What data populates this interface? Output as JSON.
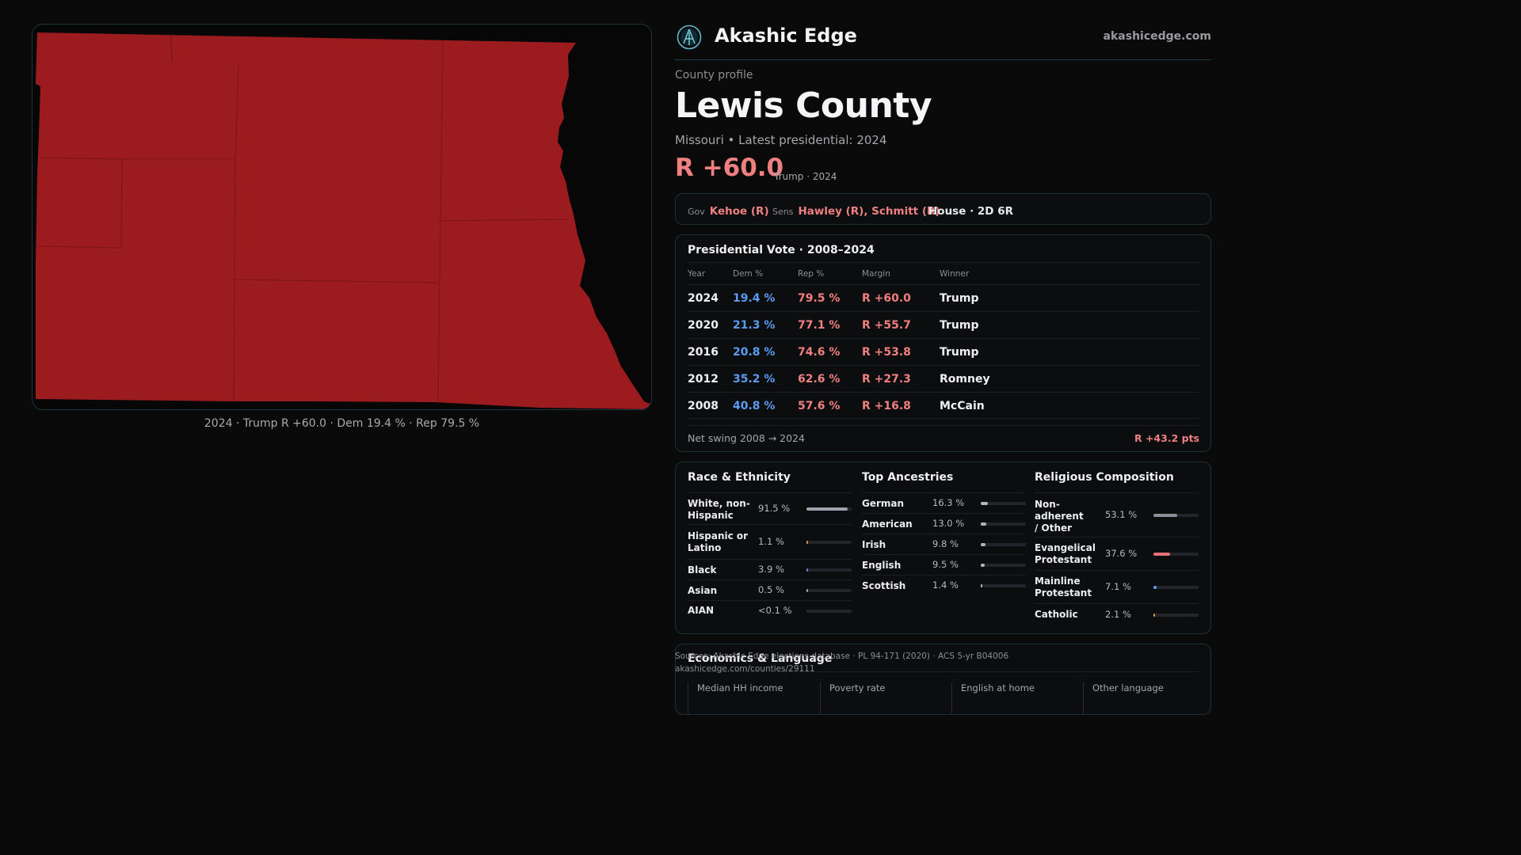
{
  "colors": {
    "rep": "#f08080",
    "dem": "#5b9cf0",
    "map_fill": "#9b1b1f",
    "accent": "#1e3c44"
  },
  "brand": {
    "name": "Akashic Edge",
    "url": "akashicedge.com",
    "logo_icon": "akashic-emblem-icon"
  },
  "map": {
    "caption": "2024 · Trump R +60.0 · Dem 19.4 % · Rep 79.5 %",
    "winner_party": "R"
  },
  "profile": {
    "eyebrow": "County profile",
    "county": "Lewis County",
    "subline": "Missouri • Latest presidential: 2024",
    "margin": "R +60.0",
    "winner_year": "Trump · 2024"
  },
  "officials": {
    "gov_label": "Gov",
    "gov": "Kehoe (R)",
    "sens_label": "Sens",
    "sens": "Hawley (R), Schmitt (R)",
    "house": "House · 2D 6R"
  },
  "results": {
    "title": "Presidential Vote · 2008–2024",
    "headers": {
      "year": "Year",
      "dem": "Dem %",
      "rep": "Rep %",
      "margin": "Margin",
      "winner": "Winner"
    },
    "rows": [
      {
        "year": "2024",
        "dem": "19.4 %",
        "rep": "79.5 %",
        "margin": "R +60.0",
        "winner": "Trump"
      },
      {
        "year": "2020",
        "dem": "21.3 %",
        "rep": "77.1 %",
        "margin": "R +55.7",
        "winner": "Trump"
      },
      {
        "year": "2016",
        "dem": "20.8 %",
        "rep": "74.6 %",
        "margin": "R +53.8",
        "winner": "Trump"
      },
      {
        "year": "2012",
        "dem": "35.2 %",
        "rep": "62.6 %",
        "margin": "R +27.3",
        "winner": "Romney"
      },
      {
        "year": "2008",
        "dem": "40.8 %",
        "rep": "57.6 %",
        "margin": "R +16.8",
        "winner": "McCain"
      }
    ],
    "swing_label": "Net swing 2008 → 2024",
    "swing_value": "R +43.2 pts"
  },
  "race": {
    "title": "Race & Ethnicity",
    "items": [
      {
        "label": "White, non-Hispanic",
        "value": "91.5 %",
        "fraction": 0.915,
        "color": "#9ea3ad"
      },
      {
        "label": "Hispanic or Latino",
        "value": "1.1 %",
        "fraction": 0.011,
        "color": "#c89a5a"
      },
      {
        "label": "Black",
        "value": "3.9 %",
        "fraction": 0.039,
        "color": "#7a7fe0"
      },
      {
        "label": "Asian",
        "value": "0.5 %",
        "fraction": 0.005,
        "color": "#9ea3ad"
      },
      {
        "label": "AIAN",
        "value": "<0.1 %",
        "fraction": 0.0,
        "color": "#9ea3ad"
      }
    ]
  },
  "ancestry": {
    "title": "Top Ancestries",
    "items": [
      {
        "label": "German",
        "value": "16.3 %",
        "fraction": 0.163,
        "color": "#b3b6be"
      },
      {
        "label": "American",
        "value": "13.0 %",
        "fraction": 0.13,
        "color": "#b3b6be"
      },
      {
        "label": "Irish",
        "value": "9.8 %",
        "fraction": 0.098,
        "color": "#b3b6be"
      },
      {
        "label": "English",
        "value": "9.5 %",
        "fraction": 0.095,
        "color": "#b3b6be"
      },
      {
        "label": "Scottish",
        "value": "1.4 %",
        "fraction": 0.014,
        "color": "#b3b6be"
      }
    ]
  },
  "religion": {
    "title": "Religious Composition",
    "items": [
      {
        "label": "Non-adherent / Other",
        "value": "53.1 %",
        "fraction": 0.531,
        "color": "#8c9099"
      },
      {
        "label": "Evangelical Protestant",
        "value": "37.6 %",
        "fraction": 0.376,
        "color": "#e8707a"
      },
      {
        "label": "Mainline Protestant",
        "value": "7.1 %",
        "fraction": 0.071,
        "color": "#5b9cf0"
      },
      {
        "label": "Catholic",
        "value": "2.1 %",
        "fraction": 0.021,
        "color": "#d8a040"
      }
    ]
  },
  "economics": {
    "title": "Economics & Language",
    "headers": [
      "Median HH income",
      "Poverty rate",
      "English at home",
      "Other language"
    ]
  },
  "sources": {
    "line1": "Sources: Akashic Edge elections database · PL 94-171 (2020) · ACS 5-yr B04006",
    "line2": "akashicedge.com/counties/29111"
  }
}
